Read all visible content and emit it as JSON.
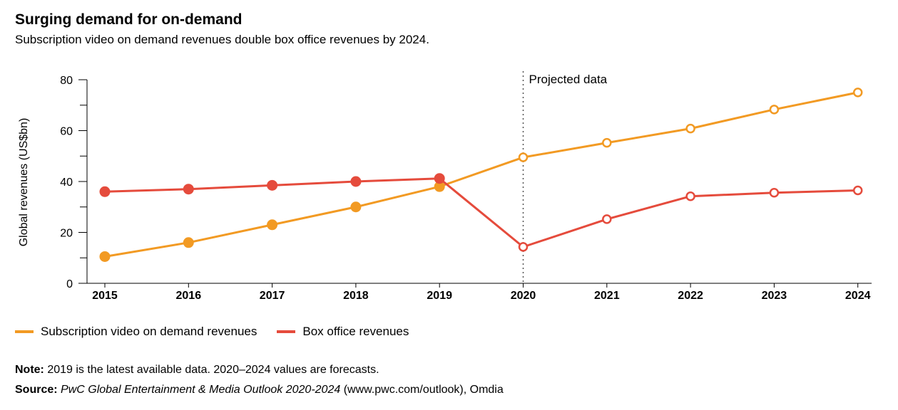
{
  "header": {
    "title": "Surging demand for on-demand",
    "subtitle": "Subscription video on demand revenues double box office revenues by 2024."
  },
  "colors": {
    "svod": "#F29A23",
    "box_office": "#E54B3C",
    "axis": "#000000",
    "projection_line": "#555555"
  },
  "chart_data": {
    "type": "line",
    "title": "Surging demand for on-demand",
    "xlabel": "",
    "ylabel": "Global revenues (US$bn)",
    "ylim": [
      0,
      80
    ],
    "yticks": [
      0,
      20,
      40,
      60,
      80
    ],
    "categories": [
      "2015",
      "2016",
      "2017",
      "2018",
      "2019",
      "2020",
      "2021",
      "2022",
      "2023",
      "2024"
    ],
    "projection_start": "2020",
    "projection_label": "Projected data",
    "series": [
      {
        "name": "Subscription video on demand revenues",
        "color": "#F29A23",
        "values": [
          10.5,
          16,
          23,
          30,
          38,
          49.5,
          55.2,
          60.8,
          68.3,
          75
        ]
      },
      {
        "name": "Box office revenues",
        "color": "#E54B3C",
        "values": [
          36,
          37,
          38.5,
          40,
          41.2,
          14.3,
          25.2,
          34.2,
          35.6,
          36.5
        ]
      }
    ]
  },
  "legend": {
    "svod_label": "Subscription video on demand revenues",
    "box_office_label": "Box office revenues"
  },
  "footer": {
    "note_label": "Note:",
    "note_text": " 2019 is the latest available data. 2020–2024 values are forecasts.",
    "source_label": "Source:",
    "source_italic": " PwC Global Entertainment & Media Outlook 2020-2024",
    "source_rest": " (www.pwc.com/outlook), Omdia"
  }
}
